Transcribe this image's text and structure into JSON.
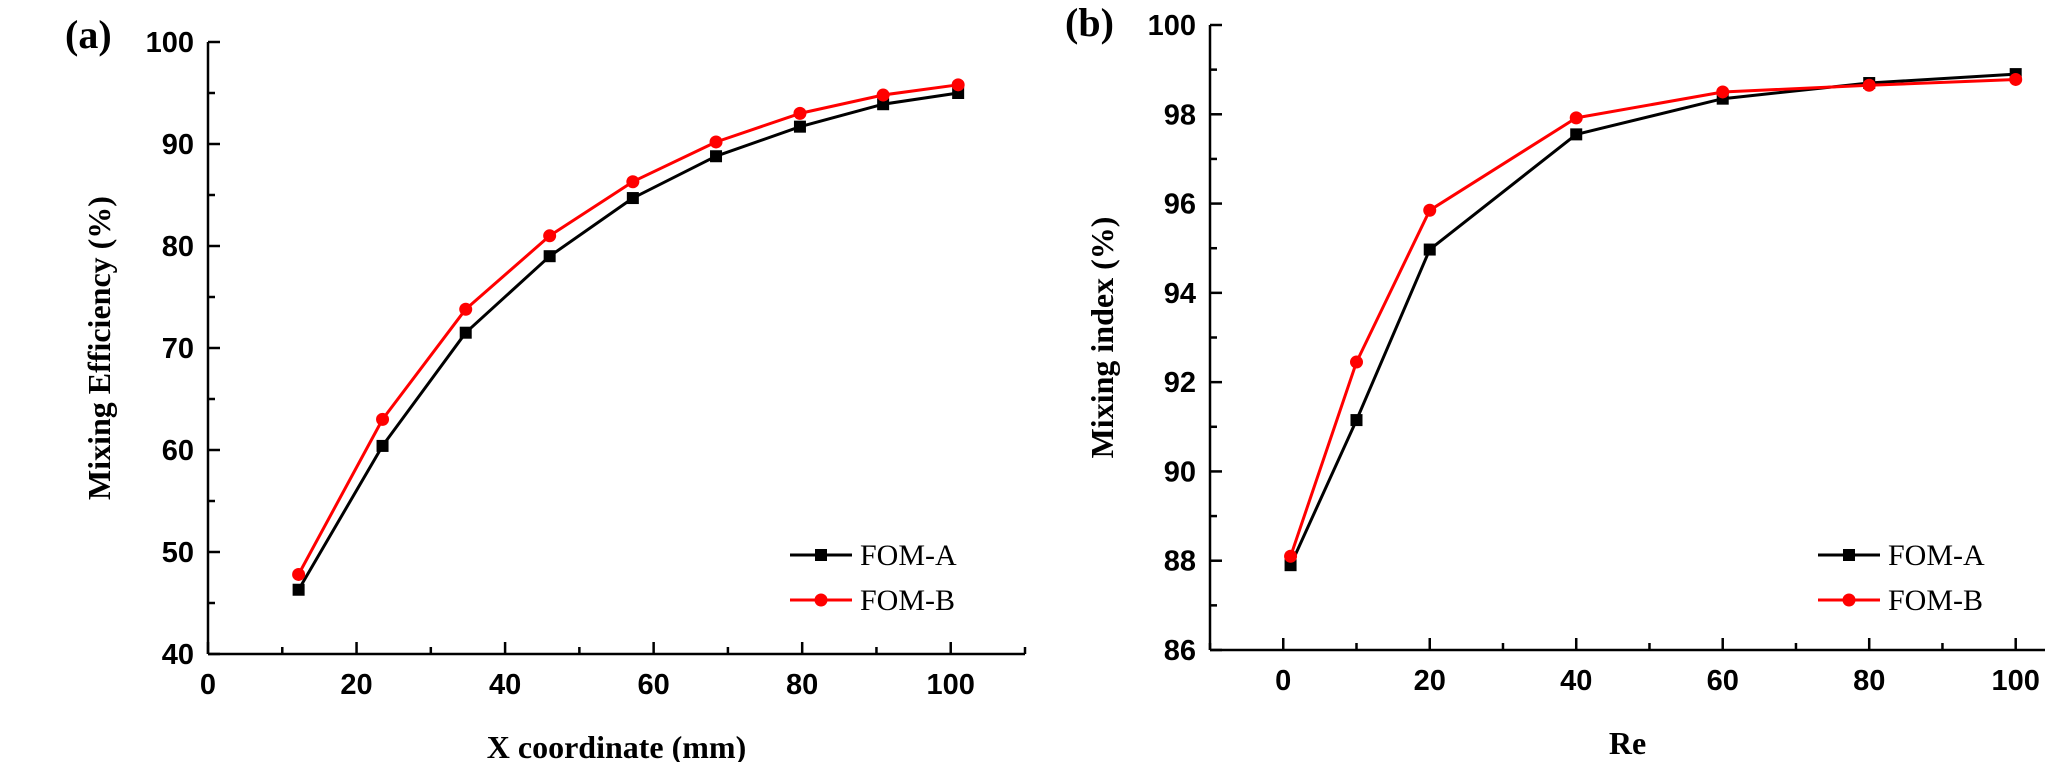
{
  "chart_data": [
    {
      "type": "line",
      "panel_label": "(a)",
      "xlabel": "X coordinate (mm)",
      "ylabel": "Mixing Efficiency (%)",
      "xlim": [
        0,
        110
      ],
      "ylim": [
        40,
        100
      ],
      "xticks": [
        0,
        20,
        40,
        60,
        80,
        100
      ],
      "yticks": [
        40,
        50,
        60,
        70,
        80,
        90,
        100
      ],
      "grid": false,
      "legend_position": "bottom-right",
      "series": [
        {
          "name": "FOM-A",
          "color": "#000000",
          "marker": "square",
          "x": [
            12.2,
            23.5,
            34.7,
            46,
            57.2,
            68.4,
            79.7,
            90.9,
            101
          ],
          "y": [
            46.3,
            60.4,
            71.5,
            79,
            84.7,
            88.8,
            91.7,
            93.9,
            95
          ]
        },
        {
          "name": "FOM-B",
          "color": "#ff0000",
          "marker": "circle",
          "x": [
            12.2,
            23.5,
            34.7,
            46,
            57.2,
            68.4,
            79.7,
            90.9,
            101
          ],
          "y": [
            47.8,
            63,
            73.8,
            81,
            86.3,
            90.2,
            93,
            94.8,
            95.8
          ]
        }
      ]
    },
    {
      "type": "line",
      "panel_label": "(b)",
      "xlabel": "Re",
      "ylabel": "Mixing index (%)",
      "xlim": [
        -10,
        104
      ],
      "ylim": [
        86,
        100
      ],
      "xticks": [
        0,
        20,
        40,
        60,
        80,
        100
      ],
      "yticks": [
        86,
        88,
        90,
        92,
        94,
        96,
        98,
        100
      ],
      "grid": false,
      "legend_position": "bottom-right",
      "series": [
        {
          "name": "FOM-A",
          "color": "#000000",
          "marker": "square",
          "x": [
            1,
            10,
            20,
            40,
            60,
            80,
            100
          ],
          "y": [
            87.9,
            91.15,
            94.97,
            97.55,
            98.35,
            98.7,
            98.9
          ]
        },
        {
          "name": "FOM-B",
          "color": "#ff0000",
          "marker": "circle",
          "x": [
            1,
            10,
            20,
            40,
            60,
            80,
            100
          ],
          "y": [
            88.1,
            92.45,
            95.85,
            97.92,
            98.5,
            98.65,
            98.78
          ]
        }
      ]
    }
  ]
}
